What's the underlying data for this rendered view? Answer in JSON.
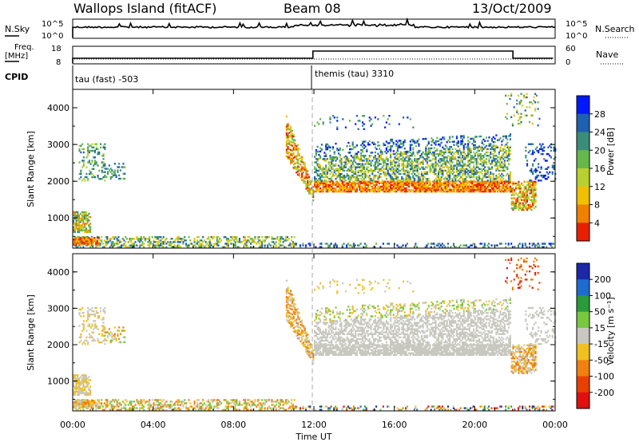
{
  "header": {
    "station": "Wallops Island (fitACF)",
    "beam": "Beam 08",
    "date": "13/Oct/2009"
  },
  "noise_panel": {
    "left_label": "N.Sky",
    "left_ticks": [
      "10^5",
      "10^0"
    ],
    "right_ticks": [
      "10^5",
      "10^0"
    ],
    "right_label": "N.Search"
  },
  "freq_panel": {
    "left_label_1": "Freq.",
    "left_label_2": "[MHz]",
    "left_ticks": [
      "18",
      "8"
    ],
    "right_ticks": [
      "60",
      "0"
    ],
    "right_label": "Nave"
  },
  "cpid": {
    "label": "CPID",
    "program_1": "tau (fast) -503",
    "program_2": "themis (tau) 3310"
  },
  "x_axis": {
    "title": "Time UT",
    "ticks": [
      "00:00",
      "04:00",
      "08:00",
      "12:00",
      "16:00",
      "20:00",
      "00:00"
    ]
  },
  "chart_data": [
    {
      "type": "heatmap",
      "panel": "power",
      "ylabel": "Slant Range [km]",
      "yticks": [
        1000,
        2000,
        3000,
        4000
      ],
      "ylim": [
        180,
        4500
      ],
      "xlim_hours": [
        0,
        24
      ],
      "colorbar_label": "Power [dB]",
      "colorbar_ticks": [
        "28",
        "24",
        "20",
        "16",
        "12",
        "8",
        "4"
      ],
      "colorbar_colors": [
        "#0018ff",
        "#2060b0",
        "#3a8e78",
        "#66b84a",
        "#b8d030",
        "#f0c000",
        "#f08000",
        "#e82000"
      ]
    },
    {
      "type": "heatmap",
      "panel": "velocity",
      "ylabel": "Slant Range [km]",
      "yticks": [
        1000,
        2000,
        3000,
        4000
      ],
      "ylim": [
        180,
        4500
      ],
      "xlim_hours": [
        0,
        24
      ],
      "colorbar_label": "Velocity [m s⁻¹]",
      "colorbar_ticks": [
        "200",
        "100",
        "50",
        "15",
        "-15",
        "-50",
        "-100",
        "-200"
      ],
      "colorbar_colors": [
        "#1c28a8",
        "#1d6bd0",
        "#2a9a3a",
        "#78c840",
        "#c8c8c0",
        "#f0c020",
        "#f08010",
        "#e84000",
        "#e01010"
      ]
    }
  ]
}
